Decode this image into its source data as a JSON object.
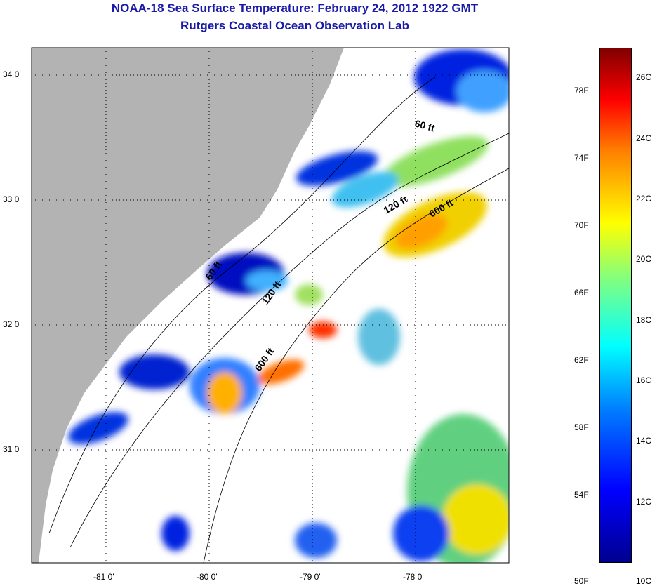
{
  "title": "NOAA-18 Sea Surface Temperature:  February 24, 2012 1922 GMT",
  "subtitle": "Rutgers Coastal Ocean Observation Lab",
  "map": {
    "lon_ticks": [
      {
        "value": -81,
        "label": "-81 0'"
      },
      {
        "value": -80,
        "label": "-80 0'"
      },
      {
        "value": -79,
        "label": "-79 0'"
      },
      {
        "value": -78,
        "label": "-78 0'"
      }
    ],
    "lat_ticks": [
      {
        "value": 34,
        "label": "34 0'"
      },
      {
        "value": 33,
        "label": "33 0'"
      },
      {
        "value": 32,
        "label": "32 0'"
      },
      {
        "value": 31,
        "label": "31 0'"
      }
    ],
    "contour_labels": [
      "60 ft",
      "60 ft",
      "120 ft",
      "120 ft",
      "600 ft",
      "600 ft"
    ],
    "land_color": "#b3b3b3"
  },
  "colorbar": {
    "range_f": [
      50,
      80.6
    ],
    "f_ticks": [
      {
        "value": 50,
        "label": "50F"
      },
      {
        "value": 54,
        "label": "54F"
      },
      {
        "value": 58,
        "label": "58F"
      },
      {
        "value": 62,
        "label": "62F"
      },
      {
        "value": 66,
        "label": "66F"
      },
      {
        "value": 70,
        "label": "70F"
      },
      {
        "value": 74,
        "label": "74F"
      },
      {
        "value": 78,
        "label": "78F"
      }
    ],
    "c_ticks": [
      {
        "value": 10,
        "label": "10C"
      },
      {
        "value": 12,
        "label": "12C"
      },
      {
        "value": 14,
        "label": "14C"
      },
      {
        "value": 16,
        "label": "16C"
      },
      {
        "value": 18,
        "label": "18C"
      },
      {
        "value": 20,
        "label": "20C"
      },
      {
        "value": 22,
        "label": "22C"
      },
      {
        "value": 24,
        "label": "24C"
      },
      {
        "value": 26,
        "label": "26C"
      }
    ]
  }
}
